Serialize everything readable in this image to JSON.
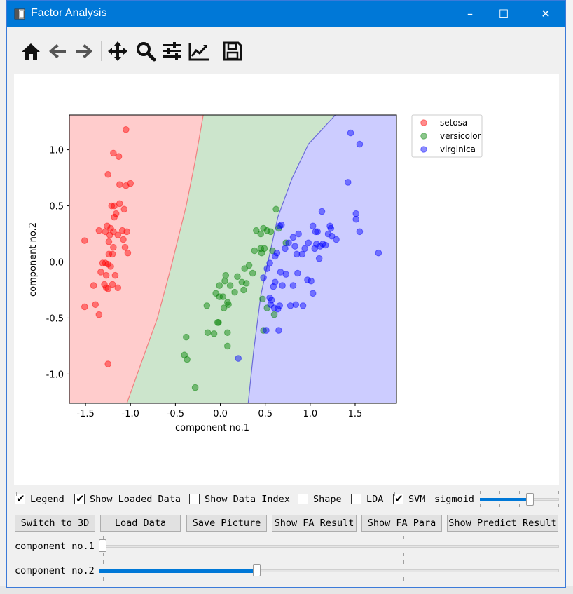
{
  "window": {
    "title": "Factor Analysis",
    "minimize": "–",
    "maximize": "☐",
    "close": "✕"
  },
  "toolbar": {
    "tools": [
      "home-icon",
      "back-icon",
      "forward-icon",
      "pan-icon",
      "zoom-icon",
      "configure-subplots-icon",
      "edit-axis-icon",
      "save-icon"
    ]
  },
  "chart_data": {
    "type": "scatter",
    "xlabel": "component no.1",
    "ylabel": "component no.2",
    "xlim": [
      -1.68,
      1.96
    ],
    "ylim": [
      -1.26,
      1.31
    ],
    "xticks": [
      -1.5,
      -1.0,
      -0.5,
      0.0,
      0.5,
      1.0,
      1.5
    ],
    "yticks": [
      -1.0,
      -0.5,
      0.0,
      0.5,
      1.0
    ],
    "xtick_labels": [
      "-1.5",
      "-1.0",
      "-0.5",
      "0.0",
      "0.5",
      "1.0",
      "1.5"
    ],
    "ytick_labels": [
      "-1.0",
      "-0.5",
      "0.0",
      "0.5",
      "1.0"
    ],
    "legend": {
      "position": "upper-right-outside",
      "entries": [
        "setosa",
        "versicolor",
        "virginica"
      ]
    },
    "colors": {
      "setosa": "#ff0000",
      "versicolor": "#008000",
      "virginica": "#0000ff",
      "region_setosa": "#ffcccc",
      "region_versicolor": "#cce5cc",
      "region_virginica": "#ccccff"
    },
    "boundary1": [
      [
        -1.04,
        -1.26
      ],
      [
        -0.88,
        -0.9
      ],
      [
        -0.7,
        -0.5
      ],
      [
        -0.55,
        -0.05
      ],
      [
        -0.38,
        0.5
      ],
      [
        -0.28,
        0.9
      ],
      [
        -0.19,
        1.31
      ]
    ],
    "boundary2": [
      [
        0.31,
        -1.26
      ],
      [
        0.37,
        -0.8
      ],
      [
        0.45,
        -0.3
      ],
      [
        0.53,
        0.0
      ],
      [
        0.64,
        0.4
      ],
      [
        0.8,
        0.75
      ],
      [
        0.98,
        1.05
      ],
      [
        1.28,
        1.31
      ]
    ],
    "series": [
      {
        "name": "setosa",
        "points": [
          [
            -1.05,
            1.18
          ],
          [
            -1.19,
            0.97
          ],
          [
            -1.13,
            0.94
          ],
          [
            -1.25,
            0.78
          ],
          [
            -1.12,
            0.69
          ],
          [
            -1.05,
            0.68
          ],
          [
            -1.0,
            0.7
          ],
          [
            -1.21,
            0.5
          ],
          [
            -1.18,
            0.5
          ],
          [
            -1.12,
            0.52
          ],
          [
            -1.07,
            0.47
          ],
          [
            -1.16,
            0.43
          ],
          [
            -1.18,
            0.4
          ],
          [
            -1.26,
            0.32
          ],
          [
            -1.22,
            0.3
          ],
          [
            -1.28,
            0.27
          ],
          [
            -1.19,
            0.27
          ],
          [
            -1.09,
            0.28
          ],
          [
            -1.04,
            0.27
          ],
          [
            -1.35,
            0.28
          ],
          [
            -1.23,
            0.24
          ],
          [
            -1.14,
            0.24
          ],
          [
            -1.51,
            0.19
          ],
          [
            -1.24,
            0.18
          ],
          [
            -1.08,
            0.2
          ],
          [
            -1.19,
            0.13
          ],
          [
            -1.06,
            0.13
          ],
          [
            -1.24,
            0.07
          ],
          [
            -1.2,
            0.07
          ],
          [
            -1.03,
            0.08
          ],
          [
            -1.28,
            -0.01
          ],
          [
            -1.25,
            -0.02
          ],
          [
            -1.31,
            -0.01
          ],
          [
            -1.22,
            -0.04
          ],
          [
            -1.33,
            -0.09
          ],
          [
            -1.27,
            -0.12
          ],
          [
            -1.17,
            -0.12
          ],
          [
            -1.41,
            -0.21
          ],
          [
            -1.29,
            -0.2
          ],
          [
            -1.2,
            -0.2
          ],
          [
            -1.27,
            -0.23
          ],
          [
            -1.25,
            -0.24
          ],
          [
            -1.14,
            -0.23
          ],
          [
            -1.51,
            -0.4
          ],
          [
            -1.39,
            -0.38
          ],
          [
            -1.35,
            -0.47
          ],
          [
            -1.25,
            -0.91
          ]
        ]
      },
      {
        "name": "versicolor",
        "points": [
          [
            0.62,
            0.47
          ],
          [
            0.4,
            0.28
          ],
          [
            0.48,
            0.3
          ],
          [
            0.52,
            0.28
          ],
          [
            0.45,
            0.25
          ],
          [
            0.56,
            0.27
          ],
          [
            0.65,
            0.3
          ],
          [
            0.73,
            0.17
          ],
          [
            0.38,
            0.1
          ],
          [
            0.45,
            0.12
          ],
          [
            0.49,
            0.12
          ],
          [
            0.46,
            0.08
          ],
          [
            0.58,
            0.1
          ],
          [
            0.32,
            -0.03
          ],
          [
            0.27,
            -0.06
          ],
          [
            0.36,
            -0.1
          ],
          [
            0.06,
            -0.12
          ],
          [
            0.19,
            -0.13
          ],
          [
            0.05,
            -0.17
          ],
          [
            0.24,
            -0.18
          ],
          [
            0.29,
            -0.19
          ],
          [
            -0.01,
            -0.21
          ],
          [
            0.11,
            -0.21
          ],
          [
            0.26,
            -0.25
          ],
          [
            -0.05,
            -0.28
          ],
          [
            0.16,
            -0.27
          ],
          [
            -0.01,
            -0.31
          ],
          [
            0.03,
            -0.31
          ],
          [
            0.08,
            -0.36
          ],
          [
            0.09,
            -0.38
          ],
          [
            -0.15,
            -0.39
          ],
          [
            0.04,
            -0.41
          ],
          [
            0.47,
            -0.33
          ],
          [
            0.52,
            -0.41
          ],
          [
            -0.03,
            -0.54
          ],
          [
            -0.02,
            -0.54
          ],
          [
            0.6,
            -0.47
          ],
          [
            0.48,
            -0.61
          ],
          [
            -0.14,
            -0.63
          ],
          [
            -0.07,
            -0.64
          ],
          [
            -0.38,
            -0.67
          ],
          [
            0.08,
            -0.63
          ],
          [
            0.08,
            -0.75
          ],
          [
            -0.4,
            -0.83
          ],
          [
            -0.37,
            -0.87
          ],
          [
            -0.28,
            -1.12
          ]
        ]
      },
      {
        "name": "virginica",
        "points": [
          [
            1.45,
            1.15
          ],
          [
            1.55,
            1.05
          ],
          [
            1.42,
            0.71
          ],
          [
            1.13,
            0.45
          ],
          [
            1.51,
            0.43
          ],
          [
            1.51,
            0.38
          ],
          [
            1.22,
            0.32
          ],
          [
            1.23,
            0.3
          ],
          [
            1.03,
            0.32
          ],
          [
            1.06,
            0.27
          ],
          [
            1.08,
            0.27
          ],
          [
            1.2,
            0.25
          ],
          [
            1.24,
            0.23
          ],
          [
            0.87,
            0.25
          ],
          [
            0.81,
            0.22
          ],
          [
            1.55,
            0.27
          ],
          [
            0.68,
            0.33
          ],
          [
            0.66,
            0.32
          ],
          [
            1.29,
            0.2
          ],
          [
            0.76,
            0.17
          ],
          [
            0.98,
            0.17
          ],
          [
            1.07,
            0.16
          ],
          [
            1.14,
            0.16
          ],
          [
            1.11,
            0.14
          ],
          [
            1.17,
            0.15
          ],
          [
            0.83,
            0.14
          ],
          [
            0.94,
            0.12
          ],
          [
            1.05,
            0.12
          ],
          [
            0.72,
            0.12
          ],
          [
            0.91,
            0.07
          ],
          [
            0.63,
            0.08
          ],
          [
            0.85,
            0.07
          ],
          [
            0.61,
            0.05
          ],
          [
            1.76,
            0.08
          ],
          [
            1.1,
            0.03
          ],
          [
            0.55,
            -0.01
          ],
          [
            0.52,
            -0.06
          ],
          [
            0.67,
            -0.09
          ],
          [
            0.86,
            -0.1
          ],
          [
            0.73,
            -0.11
          ],
          [
            0.48,
            -0.14
          ],
          [
            0.97,
            -0.16
          ],
          [
            1.01,
            -0.17
          ],
          [
            0.61,
            -0.18
          ],
          [
            0.59,
            -0.22
          ],
          [
            0.69,
            -0.21
          ],
          [
            0.81,
            -0.21
          ],
          [
            1.03,
            -0.28
          ],
          [
            0.55,
            -0.32
          ],
          [
            0.57,
            -0.34
          ],
          [
            0.66,
            -0.39
          ],
          [
            0.84,
            -0.38
          ],
          [
            0.78,
            -0.39
          ],
          [
            0.92,
            -0.39
          ],
          [
            0.56,
            -0.38
          ],
          [
            0.6,
            -0.41
          ],
          [
            0.64,
            -0.42
          ],
          [
            0.51,
            -0.61
          ],
          [
            0.65,
            -0.61
          ],
          [
            0.2,
            -0.86
          ]
        ]
      }
    ]
  },
  "controls": {
    "checkboxes": [
      {
        "label": "Legend",
        "checked": true
      },
      {
        "label": "Show Loaded Data",
        "checked": true
      },
      {
        "label": "Show Data Index",
        "checked": false
      },
      {
        "label": "Shape",
        "checked": false
      },
      {
        "label": "LDA",
        "checked": false
      },
      {
        "label": "SVM",
        "checked": true
      }
    ],
    "sigmoid_label": "sigmoid",
    "sigmoid_value": 0.65,
    "buttons": [
      "Switch to 3D",
      "Load Data",
      "Save Picture",
      "Show FA Result",
      "Show FA Para",
      "Show Predict Result"
    ],
    "slider1_label": "component no.1",
    "slider1_value": 0.0,
    "slider2_label": "component no.2",
    "slider2_value": 0.34
  }
}
